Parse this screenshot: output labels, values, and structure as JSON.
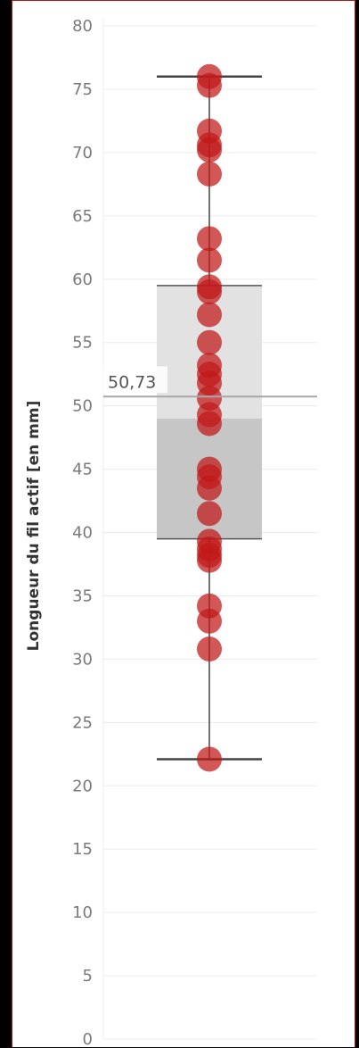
{
  "chart_data": {
    "type": "box-plot-with-points",
    "ylabel": "Longueur du fil actif [en mm]",
    "ylim": [
      0,
      80
    ],
    "yticks": [
      0,
      5,
      10,
      15,
      20,
      25,
      30,
      35,
      40,
      45,
      50,
      55,
      60,
      65,
      70,
      75,
      80
    ],
    "grid": true,
    "box": {
      "whisker_low": 22.1,
      "q1": 39.5,
      "median": 49.0,
      "q3": 59.5,
      "whisker_high": 76.0
    },
    "reference_line": {
      "value": 50.73,
      "label": "50,73"
    },
    "points": [
      76,
      75.3,
      71.7,
      70.6,
      70.2,
      68.3,
      63.2,
      61.5,
      59.4,
      59.0,
      57.2,
      55.0,
      53.2,
      52.5,
      51.8,
      50.6,
      49.3,
      48.6,
      45.0,
      44.4,
      43.5,
      41.5,
      39.3,
      38.7,
      38.2,
      37.8,
      34.2,
      33.0,
      30.8,
      22.1
    ],
    "colors": {
      "point": "#c01818",
      "box_upper": "#e2e2e2",
      "box_lower": "#c6c6c6",
      "whisker": "#444444",
      "reference": "#a8a8a8",
      "grid": "#ececec"
    }
  }
}
